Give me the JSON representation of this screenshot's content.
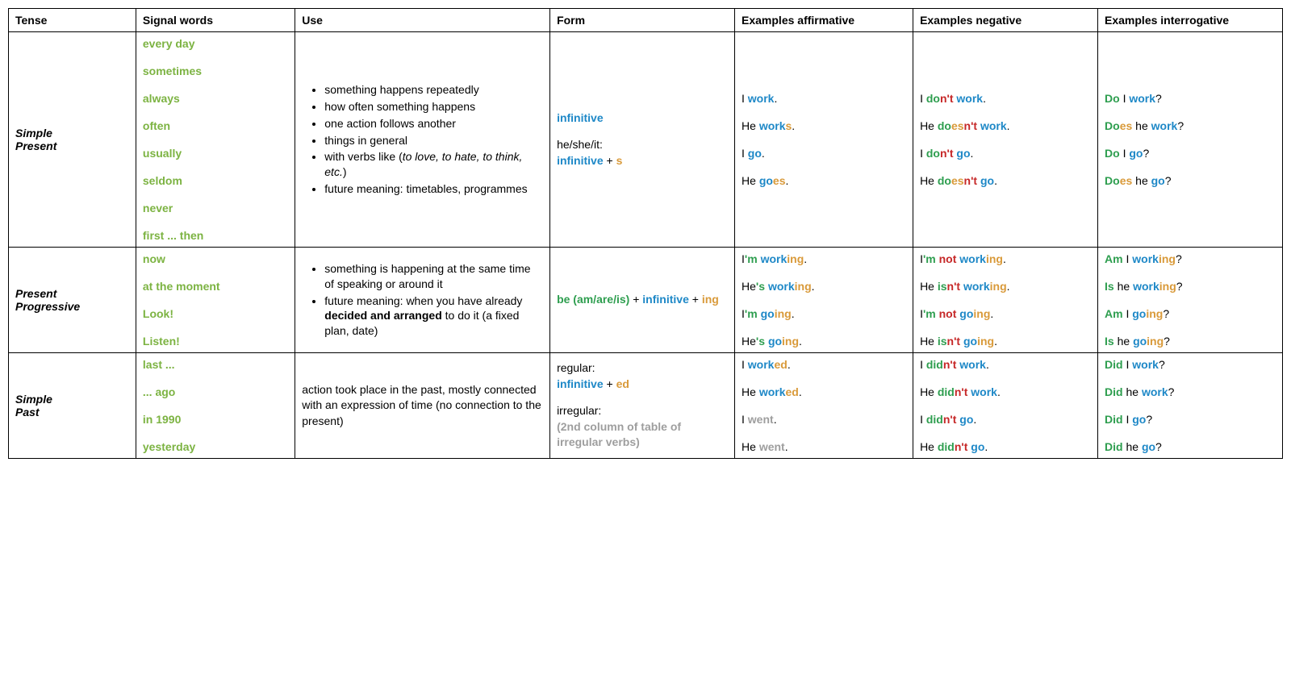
{
  "colors": {
    "signal_word": "#7cb342",
    "blue": "#1e88c7",
    "green": "#2e9e4f",
    "orange": "#d99a3a",
    "red": "#c62828",
    "grey": "#9e9e9e",
    "border": "#000000",
    "background": "#ffffff"
  },
  "typography": {
    "family": "Verdana",
    "base_size_pt": 11
  },
  "table": {
    "type": "table",
    "column_widths_pct": [
      10,
      12.5,
      20,
      14.5,
      14,
      14.5,
      14.5
    ],
    "headers": {
      "tense": "Tense",
      "signal": "Signal words",
      "use": "Use",
      "form": "Form",
      "aff": "Examples affirmative",
      "neg": "Examples negative",
      "int": "Examples interrogative"
    },
    "rows": [
      {
        "tense_line1": "Simple",
        "tense_line2": "Present",
        "signal_words": [
          "every day",
          "sometimes",
          "always",
          "often",
          "usually",
          "seldom",
          "never",
          "first ... then"
        ],
        "use_items": [
          [
            {
              "t": "something happens repeatedly"
            }
          ],
          [
            {
              "t": "how often something happens"
            }
          ],
          [
            {
              "t": "one action follows another"
            }
          ],
          [
            {
              "t": "things in general"
            }
          ],
          [
            {
              "t": "with verbs like ("
            },
            {
              "t": "to love, to hate, to think, etc.",
              "i": true
            },
            {
              "t": ")"
            }
          ],
          [
            {
              "t": "future meaning: timetables, programmes"
            }
          ]
        ],
        "form_blocks": [
          [
            {
              "t": "infinitive",
              "c": "blue"
            }
          ],
          [
            {
              "t": "he/she/it:"
            },
            {
              "br": true
            },
            {
              "t": "infinitive",
              "c": "blue"
            },
            {
              "t": " + "
            },
            {
              "t": "s",
              "c": "orange"
            }
          ]
        ],
        "affirmative": [
          [
            {
              "t": "I "
            },
            {
              "t": "work",
              "c": "blue"
            },
            {
              "t": "."
            }
          ],
          [
            {
              "t": "He "
            },
            {
              "t": "work",
              "c": "blue"
            },
            {
              "t": "s",
              "c": "orange"
            },
            {
              "t": "."
            }
          ],
          [
            {
              "t": "I "
            },
            {
              "t": "go",
              "c": "blue"
            },
            {
              "t": "."
            }
          ],
          [
            {
              "t": "He "
            },
            {
              "t": "go",
              "c": "blue"
            },
            {
              "t": "es",
              "c": "orange"
            },
            {
              "t": "."
            }
          ]
        ],
        "negative": [
          [
            {
              "t": "I "
            },
            {
              "t": "do",
              "c": "green"
            },
            {
              "t": "n't",
              "c": "red"
            },
            {
              "t": " "
            },
            {
              "t": "work",
              "c": "blue"
            },
            {
              "t": "."
            }
          ],
          [
            {
              "t": "He "
            },
            {
              "t": "do",
              "c": "green"
            },
            {
              "t": "es",
              "c": "orange"
            },
            {
              "t": "n't",
              "c": "red"
            },
            {
              "t": " "
            },
            {
              "t": "work",
              "c": "blue"
            },
            {
              "t": "."
            }
          ],
          [
            {
              "t": "I "
            },
            {
              "t": "do",
              "c": "green"
            },
            {
              "t": "n't",
              "c": "red"
            },
            {
              "t": " "
            },
            {
              "t": "go",
              "c": "blue"
            },
            {
              "t": "."
            }
          ],
          [
            {
              "t": "He "
            },
            {
              "t": "do",
              "c": "green"
            },
            {
              "t": "es",
              "c": "orange"
            },
            {
              "t": "n't",
              "c": "red"
            },
            {
              "t": " "
            },
            {
              "t": "go",
              "c": "blue"
            },
            {
              "t": "."
            }
          ]
        ],
        "interrogative": [
          [
            {
              "t": "Do",
              "c": "green"
            },
            {
              "t": " I "
            },
            {
              "t": "work",
              "c": "blue"
            },
            {
              "t": "?"
            }
          ],
          [
            {
              "t": "Do",
              "c": "green"
            },
            {
              "t": "es",
              "c": "orange"
            },
            {
              "t": " he "
            },
            {
              "t": "work",
              "c": "blue"
            },
            {
              "t": "?"
            }
          ],
          [
            {
              "t": "Do",
              "c": "green"
            },
            {
              "t": " I "
            },
            {
              "t": "go",
              "c": "blue"
            },
            {
              "t": "?"
            }
          ],
          [
            {
              "t": "Do",
              "c": "green"
            },
            {
              "t": "es",
              "c": "orange"
            },
            {
              "t": " he "
            },
            {
              "t": "go",
              "c": "blue"
            },
            {
              "t": "?"
            }
          ]
        ]
      },
      {
        "tense_line1": "Present",
        "tense_line2": "Progressive",
        "signal_words": [
          "now",
          "at the moment",
          "Look!",
          "Listen!"
        ],
        "use_items": [
          [
            {
              "t": "something is happening at the same time of speaking or around it"
            }
          ],
          [
            {
              "t": "future meaning: when you have already "
            },
            {
              "t": "decided and arranged",
              "b": true
            },
            {
              "t": " to do it (a fixed plan, date)"
            }
          ]
        ],
        "form_blocks": [
          [
            {
              "t": "be (am/are/is)",
              "c": "green"
            },
            {
              "t": " + "
            },
            {
              "t": "infinitive",
              "c": "blue"
            },
            {
              "t": " + "
            },
            {
              "t": "ing",
              "c": "orange"
            }
          ]
        ],
        "affirmative": [
          [
            {
              "t": "I"
            },
            {
              "t": "'m",
              "c": "green"
            },
            {
              "t": " "
            },
            {
              "t": "work",
              "c": "blue"
            },
            {
              "t": "ing",
              "c": "orange"
            },
            {
              "t": "."
            }
          ],
          [
            {
              "t": "He"
            },
            {
              "t": "'s",
              "c": "green"
            },
            {
              "t": " "
            },
            {
              "t": "work",
              "c": "blue"
            },
            {
              "t": "ing",
              "c": "orange"
            },
            {
              "t": "."
            }
          ],
          [
            {
              "t": "I"
            },
            {
              "t": "'m",
              "c": "green"
            },
            {
              "t": " "
            },
            {
              "t": "go",
              "c": "blue"
            },
            {
              "t": "ing",
              "c": "orange"
            },
            {
              "t": "."
            }
          ],
          [
            {
              "t": "He"
            },
            {
              "t": "'s",
              "c": "green"
            },
            {
              "t": " "
            },
            {
              "t": "go",
              "c": "blue"
            },
            {
              "t": "ing",
              "c": "orange"
            },
            {
              "t": "."
            }
          ]
        ],
        "negative": [
          [
            {
              "t": "I"
            },
            {
              "t": "'m",
              "c": "green"
            },
            {
              "t": " "
            },
            {
              "t": "not",
              "c": "red"
            },
            {
              "t": " "
            },
            {
              "t": "work",
              "c": "blue"
            },
            {
              "t": "ing",
              "c": "orange"
            },
            {
              "t": "."
            }
          ],
          [
            {
              "t": "He "
            },
            {
              "t": "is",
              "c": "green"
            },
            {
              "t": "n't",
              "c": "red"
            },
            {
              "t": " "
            },
            {
              "t": "work",
              "c": "blue"
            },
            {
              "t": "ing",
              "c": "orange"
            },
            {
              "t": "."
            }
          ],
          [
            {
              "t": "I"
            },
            {
              "t": "'m",
              "c": "green"
            },
            {
              "t": " "
            },
            {
              "t": "not",
              "c": "red"
            },
            {
              "t": " "
            },
            {
              "t": "go",
              "c": "blue"
            },
            {
              "t": "ing",
              "c": "orange"
            },
            {
              "t": "."
            }
          ],
          [
            {
              "t": "He "
            },
            {
              "t": "is",
              "c": "green"
            },
            {
              "t": "n't",
              "c": "red"
            },
            {
              "t": " "
            },
            {
              "t": "go",
              "c": "blue"
            },
            {
              "t": "ing",
              "c": "orange"
            },
            {
              "t": "."
            }
          ]
        ],
        "interrogative": [
          [
            {
              "t": "Am",
              "c": "green"
            },
            {
              "t": " I "
            },
            {
              "t": "work",
              "c": "blue"
            },
            {
              "t": "ing",
              "c": "orange"
            },
            {
              "t": "?"
            }
          ],
          [
            {
              "t": "Is",
              "c": "green"
            },
            {
              "t": " he "
            },
            {
              "t": "work",
              "c": "blue"
            },
            {
              "t": "ing",
              "c": "orange"
            },
            {
              "t": "?"
            }
          ],
          [
            {
              "t": "Am",
              "c": "green"
            },
            {
              "t": " I "
            },
            {
              "t": "go",
              "c": "blue"
            },
            {
              "t": "ing",
              "c": "orange"
            },
            {
              "t": "?"
            }
          ],
          [
            {
              "t": "Is",
              "c": "green"
            },
            {
              "t": " he "
            },
            {
              "t": "go",
              "c": "blue"
            },
            {
              "t": "ing",
              "c": "orange"
            },
            {
              "t": "?"
            }
          ]
        ]
      },
      {
        "tense_line1": "Simple",
        "tense_line2": "Past",
        "signal_words": [
          "last ...",
          "... ago",
          "in 1990",
          "yesterday"
        ],
        "use_plain": "action took place in the past, mostly connected with an expression of time (no connection to the present)",
        "form_blocks": [
          [
            {
              "t": "regular:"
            },
            {
              "br": true
            },
            {
              "t": "infinitive",
              "c": "blue"
            },
            {
              "t": " + "
            },
            {
              "t": "ed",
              "c": "orange"
            }
          ],
          [
            {
              "t": "irregular:"
            },
            {
              "br": true
            },
            {
              "t": "(2nd column of table of irregular verbs)",
              "c": "grey"
            }
          ]
        ],
        "affirmative": [
          [
            {
              "t": "I "
            },
            {
              "t": "work",
              "c": "blue"
            },
            {
              "t": "ed",
              "c": "orange"
            },
            {
              "t": "."
            }
          ],
          [
            {
              "t": "He "
            },
            {
              "t": "work",
              "c": "blue"
            },
            {
              "t": "ed",
              "c": "orange"
            },
            {
              "t": "."
            }
          ],
          [
            {
              "t": "I "
            },
            {
              "t": "went",
              "c": "grey"
            },
            {
              "t": "."
            }
          ],
          [
            {
              "t": "He "
            },
            {
              "t": "went",
              "c": "grey"
            },
            {
              "t": "."
            }
          ]
        ],
        "negative": [
          [
            {
              "t": "I "
            },
            {
              "t": "did",
              "c": "green"
            },
            {
              "t": "n't",
              "c": "red"
            },
            {
              "t": " "
            },
            {
              "t": "work",
              "c": "blue"
            },
            {
              "t": "."
            }
          ],
          [
            {
              "t": "He "
            },
            {
              "t": "did",
              "c": "green"
            },
            {
              "t": "n't",
              "c": "red"
            },
            {
              "t": " "
            },
            {
              "t": "work",
              "c": "blue"
            },
            {
              "t": "."
            }
          ],
          [
            {
              "t": "I "
            },
            {
              "t": "did",
              "c": "green"
            },
            {
              "t": "n't",
              "c": "red"
            },
            {
              "t": " "
            },
            {
              "t": "go",
              "c": "blue"
            },
            {
              "t": "."
            }
          ],
          [
            {
              "t": "He "
            },
            {
              "t": "did",
              "c": "green"
            },
            {
              "t": "n't",
              "c": "red"
            },
            {
              "t": " "
            },
            {
              "t": "go",
              "c": "blue"
            },
            {
              "t": "."
            }
          ]
        ],
        "interrogative": [
          [
            {
              "t": "Did",
              "c": "green"
            },
            {
              "t": " I "
            },
            {
              "t": "work",
              "c": "blue"
            },
            {
              "t": "?"
            }
          ],
          [
            {
              "t": "Did",
              "c": "green"
            },
            {
              "t": " he "
            },
            {
              "t": "work",
              "c": "blue"
            },
            {
              "t": "?"
            }
          ],
          [
            {
              "t": "Did",
              "c": "green"
            },
            {
              "t": " I "
            },
            {
              "t": "go",
              "c": "blue"
            },
            {
              "t": "?"
            }
          ],
          [
            {
              "t": "Did",
              "c": "green"
            },
            {
              "t": " he "
            },
            {
              "t": "go",
              "c": "blue"
            },
            {
              "t": "?"
            }
          ]
        ]
      }
    ]
  }
}
